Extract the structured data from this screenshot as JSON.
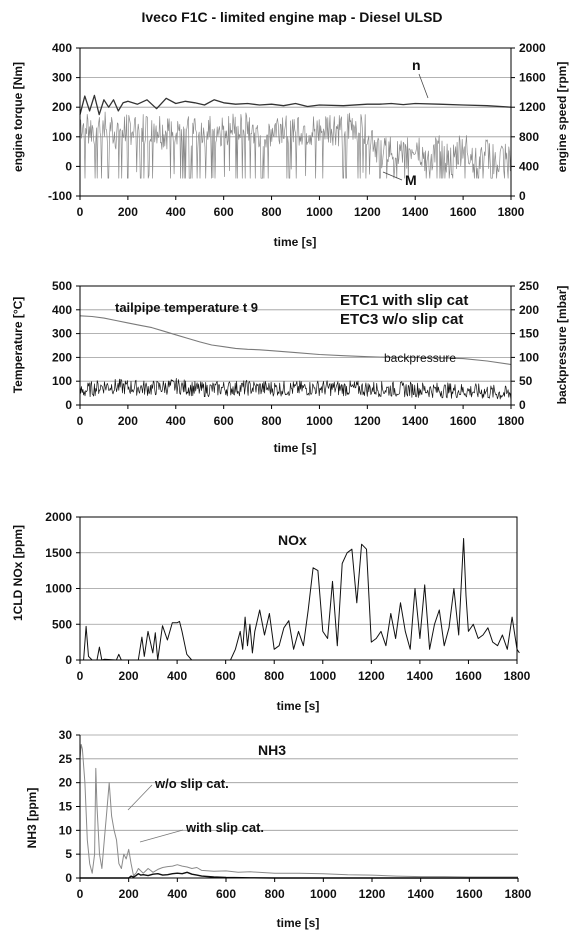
{
  "figure_title": "Iveco F1C - limited engine map - Diesel ULSD",
  "chart_data": [
    {
      "type": "line",
      "xlabel": "time [s]",
      "ylabel": "engine torque [Nm]",
      "y2label": "engine speed [rpm]",
      "xlim": [
        0,
        1800
      ],
      "ylim": [
        -100,
        400
      ],
      "y2lim": [
        0,
        2000
      ],
      "x_ticks": [
        "0",
        "200",
        "400",
        "600",
        "800",
        "1000",
        "1200",
        "1400",
        "1600",
        "1800"
      ],
      "y_ticks": [
        "-100",
        "0",
        "100",
        "200",
        "300",
        "400"
      ],
      "y2_ticks": [
        "0",
        "400",
        "800",
        "1200",
        "1600",
        "2000"
      ],
      "annotations": [
        "n",
        "M"
      ],
      "grid": true,
      "series": [
        {
          "name": "n",
          "axis": "right",
          "color": "#333333",
          "noise": 0,
          "width": 1.3,
          "x": [
            0,
            20,
            40,
            60,
            80,
            100,
            120,
            140,
            160,
            180,
            200,
            240,
            280,
            320,
            360,
            400,
            440,
            480,
            520,
            560,
            600,
            650,
            700,
            750,
            800,
            850,
            900,
            950,
            1000,
            1100,
            1200,
            1250,
            1300,
            1350,
            1400,
            1500,
            1600,
            1700,
            1800
          ],
          "y": [
            1100,
            1350,
            1150,
            1360,
            1100,
            1300,
            1200,
            1300,
            1150,
            1260,
            1280,
            1240,
            1300,
            1180,
            1320,
            1250,
            1280,
            1260,
            1230,
            1300,
            1260,
            1240,
            1250,
            1230,
            1240,
            1220,
            1250,
            1210,
            1230,
            1220,
            1240,
            1240,
            1250,
            1235,
            1250,
            1240,
            1230,
            1220,
            1200
          ]
        },
        {
          "name": "M",
          "axis": "left",
          "color": "#8a8a8a",
          "noise": 150,
          "width": 0.7,
          "x": [
            0,
            50,
            100,
            150,
            200,
            250,
            300,
            350,
            400,
            450,
            500,
            550,
            600,
            650,
            700,
            750,
            800,
            850,
            900,
            950,
            1000,
            1050,
            1100,
            1150,
            1200,
            1250,
            1300,
            1350,
            1400,
            1450,
            1500,
            1550,
            1600,
            1650,
            1700,
            1750,
            1800
          ],
          "y": [
            150,
            130,
            150,
            120,
            140,
            130,
            150,
            120,
            140,
            130,
            120,
            140,
            130,
            150,
            140,
            120,
            130,
            150,
            140,
            130,
            120,
            140,
            130,
            150,
            140,
            60,
            60,
            40,
            90,
            30,
            70,
            20,
            80,
            40,
            50,
            30,
            40
          ]
        }
      ]
    },
    {
      "type": "line",
      "xlabel": "time [s]",
      "ylabel": "Temperature [°C]",
      "y2label": "backpressure [mbar]",
      "xlim": [
        0,
        1800
      ],
      "ylim": [
        0,
        500
      ],
      "y2lim": [
        0,
        250
      ],
      "x_ticks": [
        "0",
        "200",
        "400",
        "600",
        "800",
        "1000",
        "1200",
        "1400",
        "1600",
        "1800"
      ],
      "y_ticks": [
        "0",
        "100",
        "200",
        "300",
        "400",
        "500"
      ],
      "y2_ticks": [
        "0",
        "50",
        "100",
        "150",
        "200",
        "250"
      ],
      "annotations": [
        "tailpipe temperature t 9",
        "backpressure"
      ],
      "legend": [
        "ETC1 with slip cat",
        "ETC3 w/o slip cat"
      ],
      "legend_position": "top-right",
      "grid": true,
      "series": [
        {
          "name": "tailpipe temperature t 9",
          "axis": "left",
          "color": "#7a7a7a",
          "noise": 0,
          "width": 1.1,
          "x": [
            0,
            50,
            100,
            150,
            200,
            250,
            300,
            350,
            400,
            450,
            500,
            550,
            600,
            650,
            700,
            750,
            800,
            900,
            1000,
            1100,
            1200,
            1300,
            1400,
            1500,
            1600,
            1700,
            1800
          ],
          "y": [
            375,
            372,
            365,
            355,
            345,
            335,
            325,
            310,
            295,
            280,
            265,
            252,
            245,
            238,
            234,
            232,
            228,
            220,
            212,
            207,
            203,
            200,
            200,
            198,
            195,
            185,
            170
          ]
        },
        {
          "name": "backpressure",
          "axis": "left",
          "color": "#111111",
          "noise": 55,
          "width": 0.7,
          "x": [
            0,
            100,
            200,
            300,
            400,
            500,
            600,
            700,
            800,
            900,
            1000,
            1100,
            1200,
            1300,
            1400,
            1500,
            1600,
            1700,
            1800
          ],
          "y": [
            55,
            80,
            75,
            70,
            80,
            65,
            70,
            72,
            70,
            68,
            72,
            70,
            68,
            66,
            65,
            62,
            60,
            55,
            45
          ]
        }
      ]
    },
    {
      "type": "line",
      "xlabel": "time [s]",
      "ylabel": "1CLD NOx [ppm]",
      "xlim": [
        0,
        1800
      ],
      "ylim": [
        0,
        2000
      ],
      "x_ticks": [
        "0",
        "200",
        "400",
        "600",
        "800",
        "1000",
        "1200",
        "1400",
        "1600",
        "1800"
      ],
      "y_ticks": [
        "0",
        "500",
        "1000",
        "1500",
        "2000"
      ],
      "annotations": [
        "NOx"
      ],
      "grid": true,
      "series": [
        {
          "name": "NOx",
          "axis": "left",
          "color": "#111111",
          "noise": 0,
          "width": 1.0,
          "x": [
            0,
            15,
            25,
            35,
            50,
            70,
            80,
            90,
            100,
            150,
            160,
            170,
            200,
            240,
            255,
            265,
            280,
            300,
            310,
            320,
            340,
            360,
            380,
            400,
            410,
            420,
            440,
            460,
            480,
            500,
            550,
            600,
            620,
            640,
            660,
            670,
            680,
            690,
            700,
            710,
            720,
            740,
            760,
            780,
            800,
            820,
            840,
            860,
            880,
            900,
            920,
            940,
            960,
            980,
            1000,
            1020,
            1040,
            1060,
            1080,
            1100,
            1120,
            1140,
            1160,
            1180,
            1200,
            1220,
            1240,
            1260,
            1280,
            1300,
            1320,
            1340,
            1360,
            1380,
            1400,
            1420,
            1440,
            1460,
            1480,
            1500,
            1520,
            1540,
            1560,
            1580,
            1590,
            1600,
            1620,
            1640,
            1660,
            1680,
            1700,
            1720,
            1740,
            1760,
            1780,
            1800,
            1810
          ],
          "y": [
            0,
            0,
            470,
            50,
            0,
            0,
            180,
            0,
            10,
            0,
            80,
            0,
            0,
            0,
            320,
            50,
            400,
            100,
            380,
            0,
            480,
            280,
            520,
            520,
            540,
            400,
            80,
            0,
            0,
            0,
            0,
            0,
            0,
            150,
            400,
            150,
            600,
            200,
            500,
            100,
            400,
            700,
            350,
            650,
            150,
            200,
            450,
            550,
            150,
            400,
            200,
            700,
            1290,
            1250,
            400,
            300,
            1100,
            200,
            1350,
            1500,
            1550,
            800,
            1620,
            1550,
            250,
            300,
            400,
            200,
            650,
            300,
            800,
            400,
            150,
            1000,
            300,
            1050,
            150,
            500,
            700,
            200,
            450,
            1000,
            350,
            1700,
            900,
            400,
            500,
            300,
            350,
            450,
            250,
            200,
            350,
            150,
            600,
            150,
            100
          ]
        }
      ]
    },
    {
      "type": "line",
      "xlabel": "time [s]",
      "ylabel": "NH3 [ppm]",
      "xlim": [
        0,
        1800
      ],
      "ylim": [
        0,
        30
      ],
      "x_ticks": [
        "0",
        "200",
        "400",
        "600",
        "800",
        "1000",
        "1200",
        "1400",
        "1600",
        "1800"
      ],
      "y_ticks": [
        "0",
        "5",
        "10",
        "15",
        "20",
        "25",
        "30"
      ],
      "title": "NH3",
      "annotations": [
        "w/o slip cat.",
        "with slip cat."
      ],
      "grid": true,
      "series": [
        {
          "name": "w/o slip cat.",
          "axis": "left",
          "color": "#8a8a8a",
          "noise": 0,
          "width": 1.0,
          "x": [
            0,
            5,
            10,
            20,
            30,
            40,
            50,
            60,
            65,
            70,
            80,
            90,
            100,
            110,
            120,
            130,
            140,
            150,
            160,
            170,
            180,
            190,
            200,
            210,
            220,
            230,
            240,
            250,
            260,
            270,
            280,
            290,
            300,
            320,
            340,
            360,
            380,
            400,
            420,
            440,
            460,
            480,
            500,
            550,
            600,
            650,
            700,
            800,
            900,
            1000,
            1100,
            1200,
            1300,
            1400,
            1500,
            1600,
            1700,
            1800
          ],
          "y": [
            25,
            28,
            27,
            20,
            8,
            3,
            1,
            5,
            23,
            15,
            5,
            2,
            8,
            14,
            20,
            13,
            10,
            8,
            3,
            2,
            5,
            4,
            6,
            3,
            0.5,
            1,
            2,
            1.5,
            1,
            1.5,
            2,
            1.6,
            1.2,
            1.8,
            2.2,
            2.4,
            2.5,
            2.8,
            2.5,
            2.3,
            2.0,
            2.2,
            1.6,
            1.4,
            1.5,
            1.2,
            1.3,
            1.0,
            1.0,
            0.9,
            0.7,
            0.6,
            0.4,
            0.3,
            0.3,
            0.2,
            0.2,
            0.2
          ]
        },
        {
          "name": "with slip cat.",
          "axis": "left",
          "color": "#111111",
          "noise": 0,
          "width": 1.4,
          "x": [
            0,
            150,
            200,
            210,
            220,
            230,
            240,
            250,
            260,
            280,
            300,
            320,
            340,
            360,
            380,
            400,
            420,
            440,
            460,
            480,
            500,
            550,
            600,
            700,
            800,
            900,
            1000,
            1200,
            1400,
            1600,
            1800
          ],
          "y": [
            0,
            0,
            0,
            0.4,
            0.2,
            0.5,
            0.9,
            0.6,
            0.7,
            0.5,
            0.8,
            0.9,
            0.6,
            0.7,
            0.9,
            1.0,
            0.9,
            1.2,
            0.8,
            0.6,
            0.4,
            0.2,
            0.1,
            0.05,
            0,
            0,
            0,
            0,
            0,
            0,
            0
          ]
        }
      ]
    }
  ],
  "colors": {
    "grid": "#9a9a9a",
    "axis": "#000000",
    "legend_primary": "#111111",
    "legend_secondary": "#9a9a9a"
  }
}
